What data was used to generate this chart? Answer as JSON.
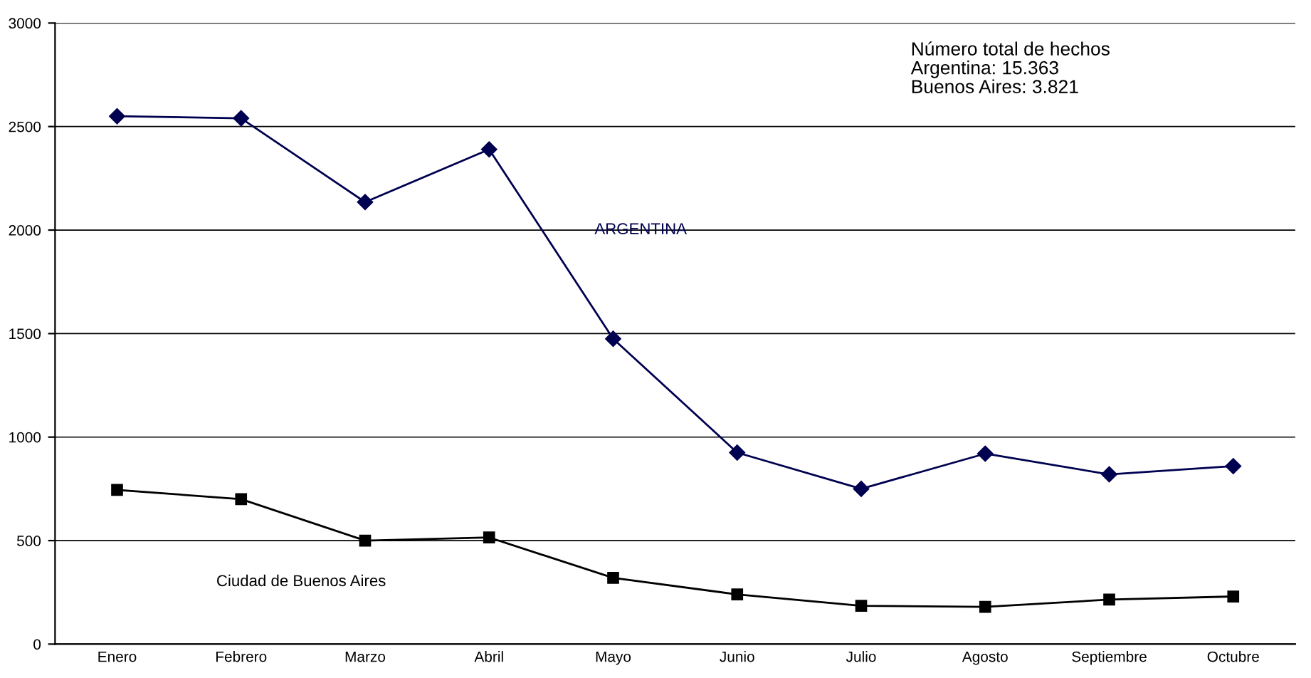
{
  "chart_data": {
    "type": "line",
    "categories": [
      "Enero",
      "Febrero",
      "Marzo",
      "Abril",
      "Mayo",
      "Junio",
      "Julio",
      "Agosto",
      "Septiembre",
      "Octubre"
    ],
    "series": [
      {
        "name": "ARGENTINA",
        "color": "#000050",
        "marker": "diamond",
        "values": [
          2550,
          2540,
          2135,
          2390,
          1475,
          925,
          750,
          920,
          820,
          860
        ]
      },
      {
        "name": "Ciudad de Buenos Aires",
        "color": "#000000",
        "marker": "square",
        "values": [
          745,
          700,
          500,
          515,
          320,
          240,
          185,
          180,
          215,
          230
        ]
      }
    ],
    "annotations": [
      "Número total de hechos\nArgentina: 15.363\nBuenos Aires: 3.821"
    ],
    "ylim": [
      0,
      3000
    ],
    "yticks": [
      0,
      500,
      1000,
      1500,
      2000,
      2500,
      3000
    ],
    "grid": "y",
    "line_style": "solid"
  }
}
